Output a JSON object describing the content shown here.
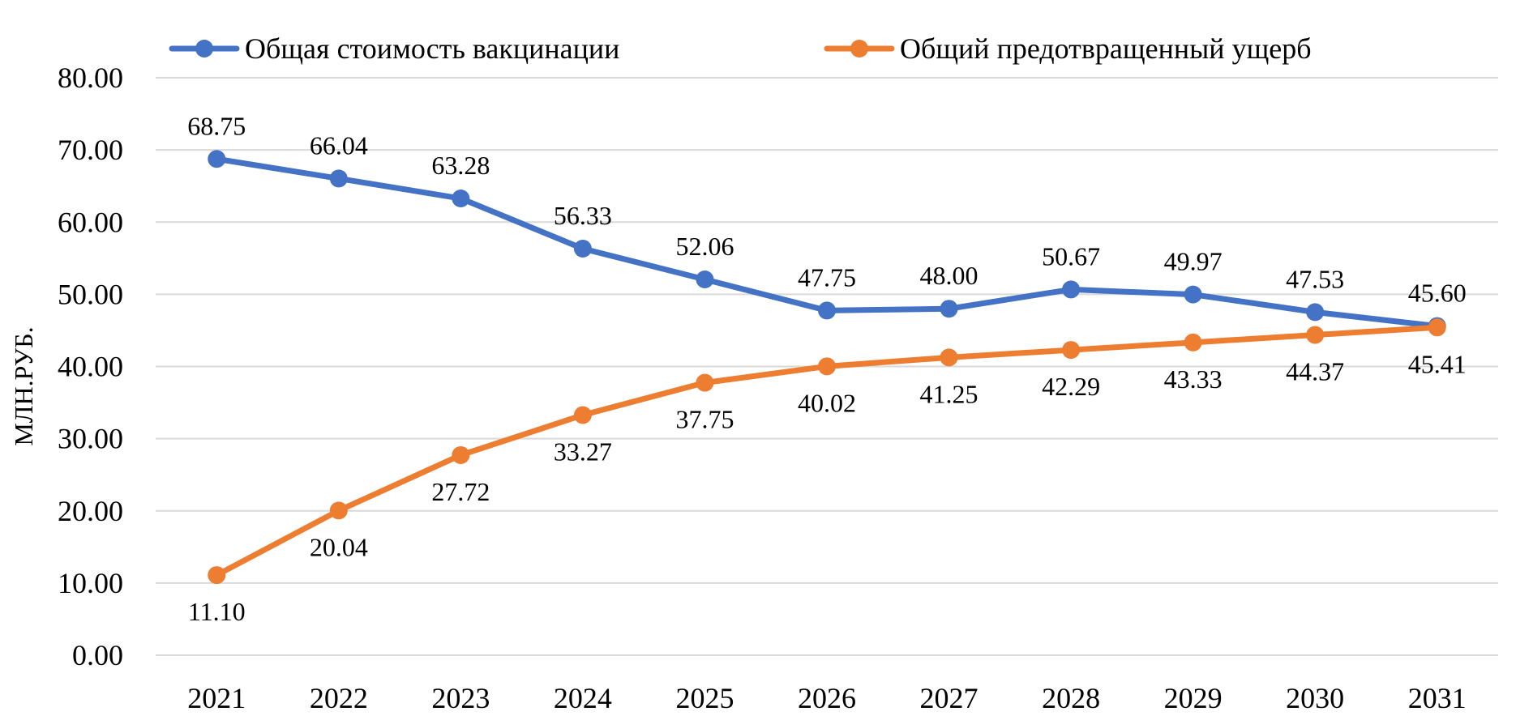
{
  "chart_data": {
    "type": "line",
    "categories": [
      "2021",
      "2022",
      "2023",
      "2024",
      "2025",
      "2026",
      "2027",
      "2028",
      "2029",
      "2030",
      "2031"
    ],
    "ylabel": "МЛН.РУБ.",
    "xlabel": "",
    "title": "",
    "ylim": [
      0,
      80
    ],
    "yticks": [
      "0.00",
      "10.00",
      "20.00",
      "30.00",
      "40.00",
      "50.00",
      "60.00",
      "70.00",
      "80.00"
    ],
    "grid": true,
    "legend_position": "top",
    "series": [
      {
        "name": "Общая стоимость вакцинации",
        "color": "#4472c4",
        "label_position": "above",
        "values": [
          68.75,
          66.04,
          63.28,
          56.33,
          52.06,
          47.75,
          48.0,
          50.67,
          49.97,
          47.53,
          45.6
        ],
        "labels": [
          "68.75",
          "66.04",
          "63.28",
          "56.33",
          "52.06",
          "47.75",
          "48.00",
          "50.67",
          "49.97",
          "47.53",
          "45.60"
        ]
      },
      {
        "name": "Общий предотвращенный ущерб",
        "color": "#ed7d31",
        "label_position": "below",
        "values": [
          11.1,
          20.04,
          27.72,
          33.27,
          37.75,
          40.02,
          41.25,
          42.29,
          43.33,
          44.37,
          45.41
        ],
        "labels": [
          "11.10",
          "20.04",
          "27.72",
          "33.27",
          "37.75",
          "40.02",
          "41.25",
          "42.29",
          "43.33",
          "44.37",
          "45.41"
        ]
      }
    ]
  }
}
